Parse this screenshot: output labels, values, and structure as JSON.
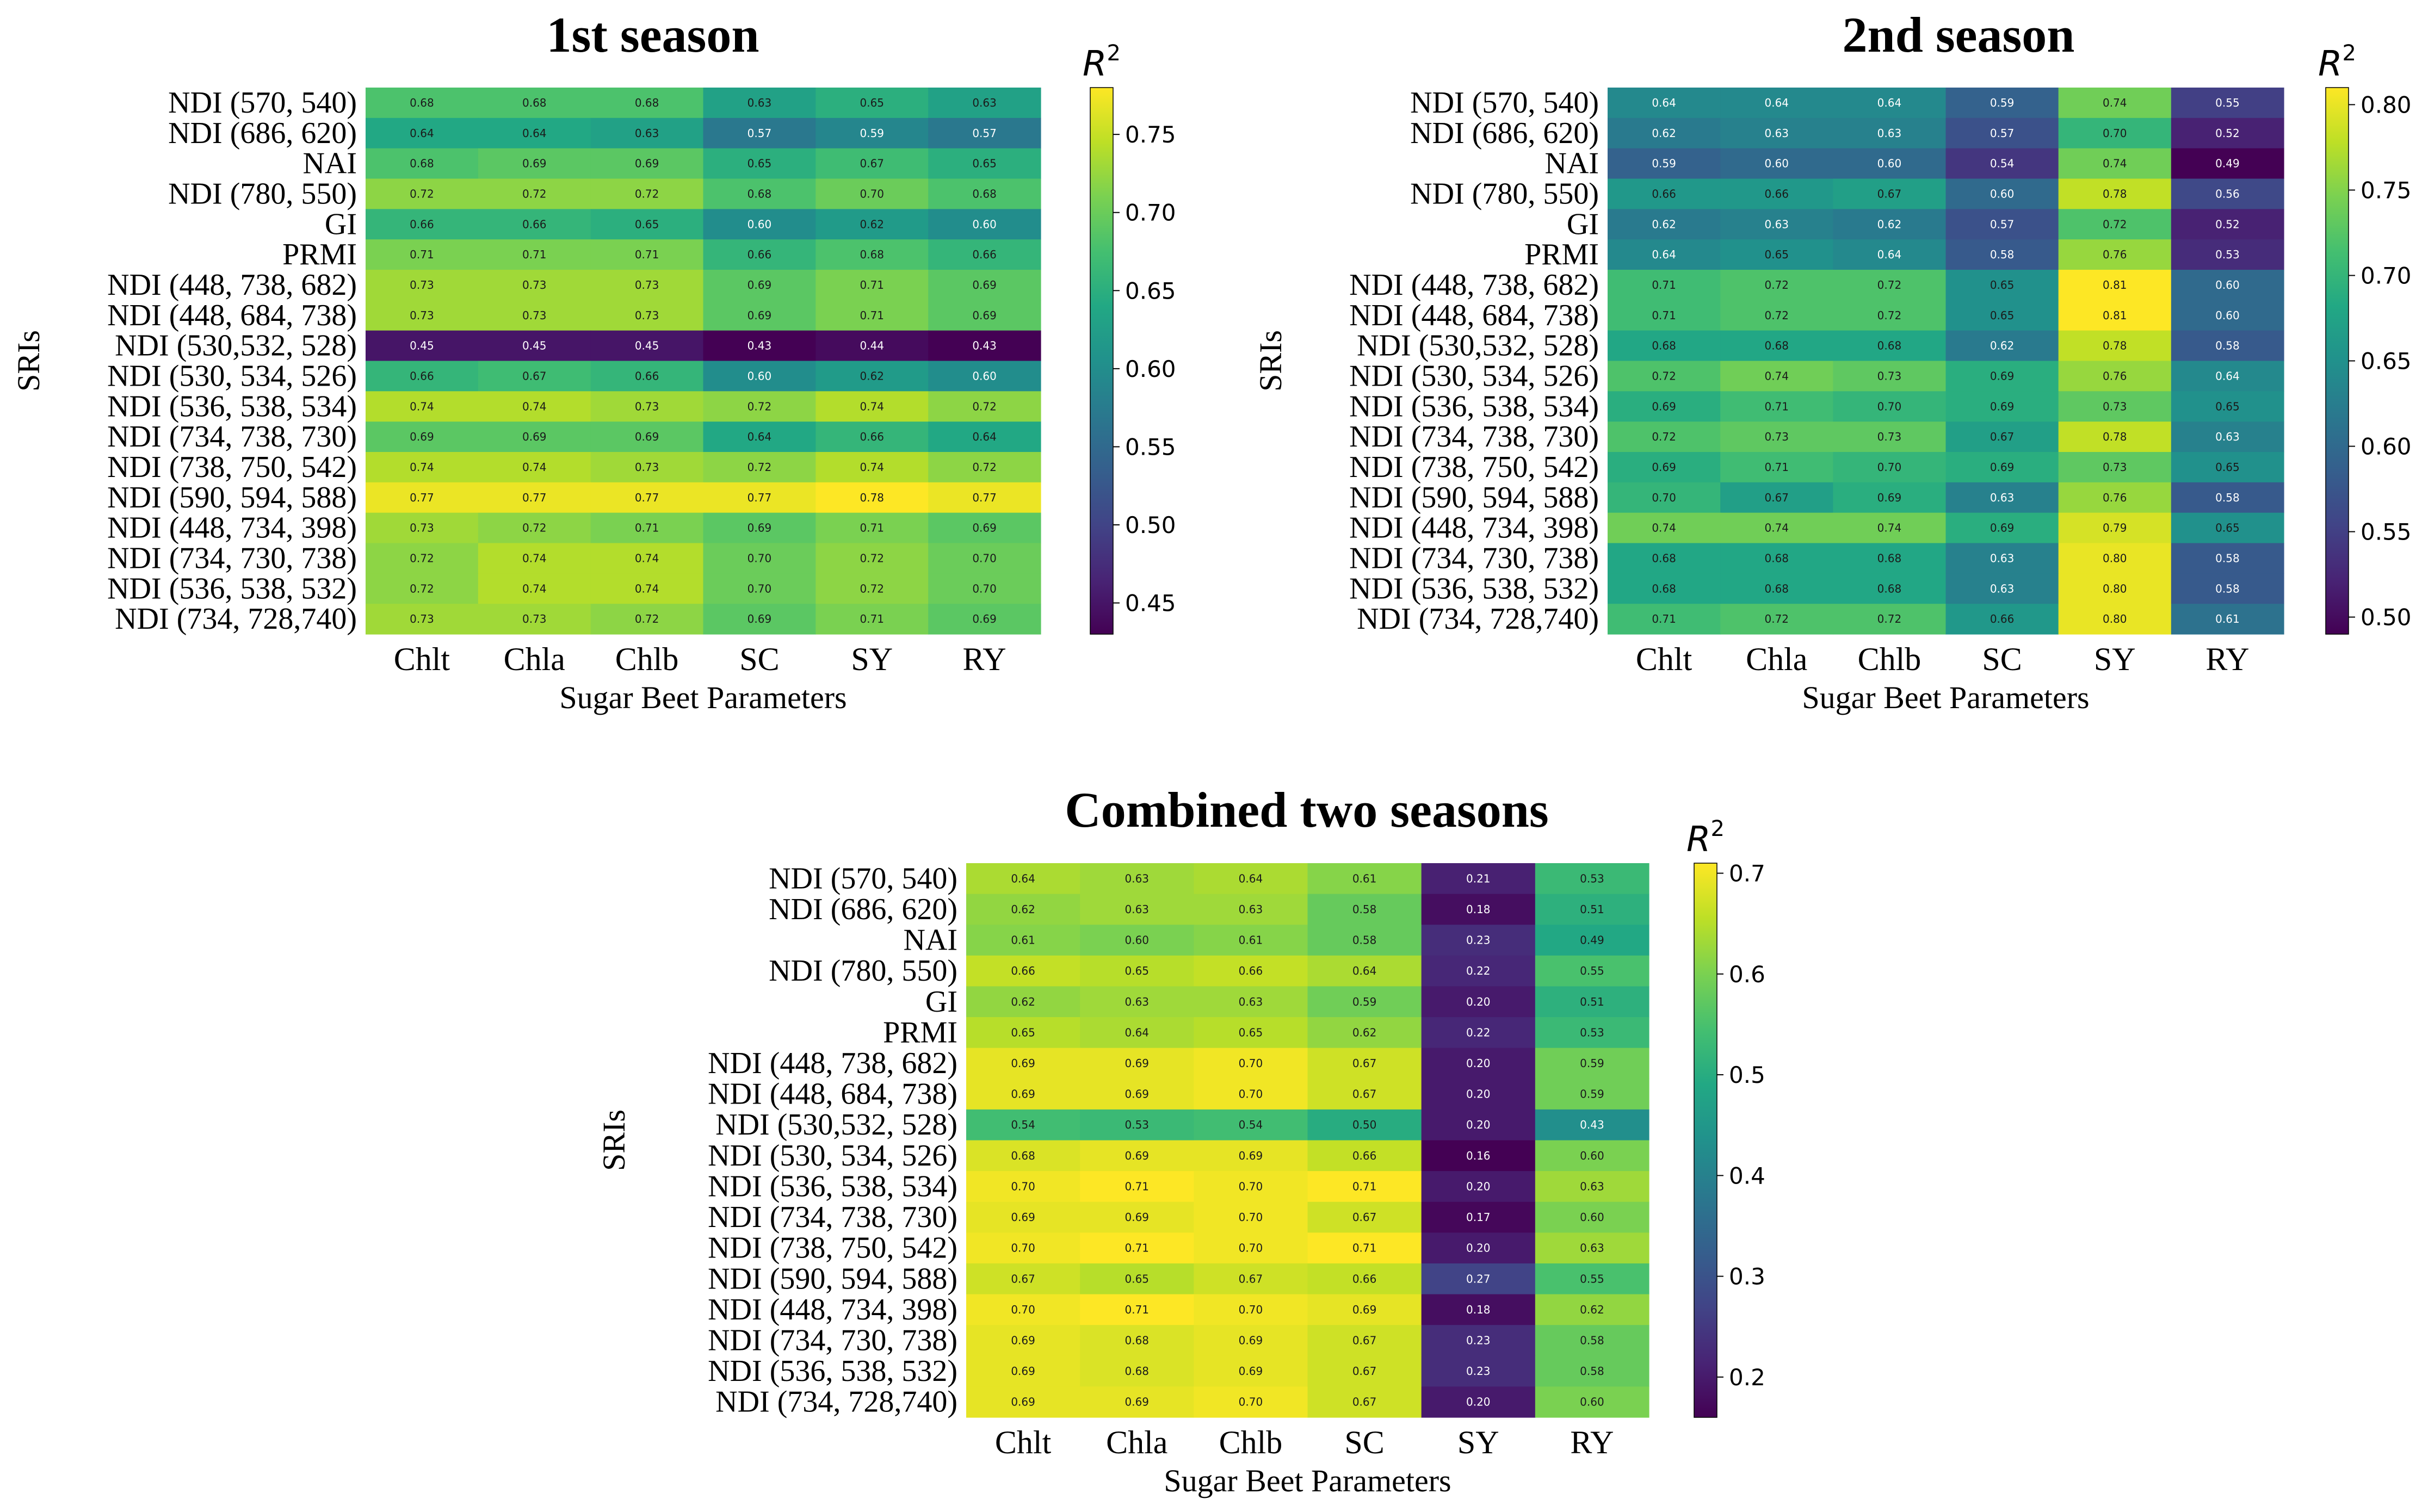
{
  "chart_data": [
    {
      "type": "heatmap",
      "title": "1st season",
      "xlabel": "Sugar Beet Parameters",
      "ylabel": "SRIs",
      "colorbar_label": "R",
      "colorbar_label_sup": "2",
      "colormap": "viridis",
      "vmin": 0.43,
      "vmax": 0.78,
      "colorbar_ticks": [
        0.45,
        0.5,
        0.55,
        0.6,
        0.65,
        0.7,
        0.75
      ],
      "colorbar_tick_labels": [
        "0.45",
        "0.50",
        "0.55",
        "0.60",
        "0.65",
        "0.70",
        "0.75"
      ],
      "columns": [
        "Chlt",
        "Chla",
        "Chlb",
        "SC",
        "SY",
        "RY"
      ],
      "rows": [
        "NDI (570, 540)",
        "NDI (686, 620)",
        "NAI",
        "NDI (780, 550)",
        "GI",
        "PRMI",
        "NDI (448, 738, 682)",
        "NDI (448, 684, 738)",
        "NDI (530,532, 528)",
        "NDI (530, 534, 526)",
        "NDI (536, 538, 534)",
        "NDI (734, 738, 730)",
        "NDI (738, 750, 542)",
        "NDI (590, 594, 588)",
        "NDI (448, 734, 398)",
        "NDI (734, 730, 738)",
        "NDI (536, 538, 532)",
        "NDI (734, 728,740)"
      ],
      "values": [
        [
          0.68,
          0.68,
          0.68,
          0.63,
          0.65,
          0.63
        ],
        [
          0.64,
          0.64,
          0.63,
          0.57,
          0.59,
          0.57
        ],
        [
          0.68,
          0.69,
          0.69,
          0.65,
          0.67,
          0.65
        ],
        [
          0.72,
          0.72,
          0.72,
          0.68,
          0.7,
          0.68
        ],
        [
          0.66,
          0.66,
          0.65,
          0.6,
          0.62,
          0.6
        ],
        [
          0.71,
          0.71,
          0.71,
          0.66,
          0.68,
          0.66
        ],
        [
          0.73,
          0.73,
          0.73,
          0.69,
          0.71,
          0.69
        ],
        [
          0.73,
          0.73,
          0.73,
          0.69,
          0.71,
          0.69
        ],
        [
          0.45,
          0.45,
          0.45,
          0.43,
          0.44,
          0.43
        ],
        [
          0.66,
          0.67,
          0.66,
          0.6,
          0.62,
          0.6
        ],
        [
          0.74,
          0.74,
          0.73,
          0.72,
          0.74,
          0.72
        ],
        [
          0.69,
          0.69,
          0.69,
          0.64,
          0.66,
          0.64
        ],
        [
          0.74,
          0.74,
          0.73,
          0.72,
          0.74,
          0.72
        ],
        [
          0.77,
          0.77,
          0.77,
          0.77,
          0.78,
          0.77
        ],
        [
          0.73,
          0.72,
          0.71,
          0.69,
          0.71,
          0.69
        ],
        [
          0.72,
          0.74,
          0.74,
          0.7,
          0.72,
          0.7
        ],
        [
          0.72,
          0.74,
          0.74,
          0.7,
          0.72,
          0.7
        ],
        [
          0.73,
          0.73,
          0.72,
          0.69,
          0.71,
          0.69
        ]
      ]
    },
    {
      "type": "heatmap",
      "title": "2nd season",
      "xlabel": "Sugar Beet Parameters",
      "ylabel": "SRIs",
      "colorbar_label": "R",
      "colorbar_label_sup": "2",
      "colormap": "viridis",
      "vmin": 0.49,
      "vmax": 0.81,
      "colorbar_ticks": [
        0.5,
        0.55,
        0.6,
        0.65,
        0.7,
        0.75,
        0.8
      ],
      "colorbar_tick_labels": [
        "0.50",
        "0.55",
        "0.60",
        "0.65",
        "0.70",
        "0.75",
        "0.80"
      ],
      "columns": [
        "Chlt",
        "Chla",
        "Chlb",
        "SC",
        "SY",
        "RY"
      ],
      "rows": [
        "NDI (570, 540)",
        "NDI (686, 620)",
        "NAI",
        "NDI (780, 550)",
        "GI",
        "PRMI",
        "NDI (448, 738, 682)",
        "NDI (448, 684, 738)",
        "NDI (530,532, 528)",
        "NDI (530, 534, 526)",
        "NDI (536, 538, 534)",
        "NDI (734, 738, 730)",
        "NDI (738, 750, 542)",
        "NDI (590, 594, 588)",
        "NDI (448, 734, 398)",
        "NDI (734, 730, 738)",
        "NDI (536, 538, 532)",
        "NDI (734, 728,740)"
      ],
      "values": [
        [
          0.64,
          0.64,
          0.64,
          0.59,
          0.74,
          0.55
        ],
        [
          0.62,
          0.63,
          0.63,
          0.57,
          0.7,
          0.52
        ],
        [
          0.59,
          0.6,
          0.6,
          0.54,
          0.74,
          0.49
        ],
        [
          0.66,
          0.66,
          0.67,
          0.6,
          0.78,
          0.56
        ],
        [
          0.62,
          0.63,
          0.62,
          0.57,
          0.72,
          0.52
        ],
        [
          0.64,
          0.65,
          0.64,
          0.58,
          0.76,
          0.53
        ],
        [
          0.71,
          0.72,
          0.72,
          0.65,
          0.81,
          0.6
        ],
        [
          0.71,
          0.72,
          0.72,
          0.65,
          0.81,
          0.6
        ],
        [
          0.68,
          0.68,
          0.68,
          0.62,
          0.78,
          0.58
        ],
        [
          0.72,
          0.74,
          0.73,
          0.69,
          0.76,
          0.64
        ],
        [
          0.69,
          0.71,
          0.7,
          0.69,
          0.73,
          0.65
        ],
        [
          0.72,
          0.73,
          0.73,
          0.67,
          0.78,
          0.63
        ],
        [
          0.69,
          0.71,
          0.7,
          0.69,
          0.73,
          0.65
        ],
        [
          0.7,
          0.67,
          0.69,
          0.63,
          0.76,
          0.58
        ],
        [
          0.74,
          0.74,
          0.74,
          0.69,
          0.79,
          0.65
        ],
        [
          0.68,
          0.68,
          0.68,
          0.63,
          0.8,
          0.58
        ],
        [
          0.68,
          0.68,
          0.68,
          0.63,
          0.8,
          0.58
        ],
        [
          0.71,
          0.72,
          0.72,
          0.66,
          0.8,
          0.61
        ]
      ]
    },
    {
      "type": "heatmap",
      "title": "Combined two seasons",
      "xlabel": "Sugar Beet Parameters",
      "ylabel": "SRIs",
      "colorbar_label": "R",
      "colorbar_label_sup": "2",
      "colormap": "viridis",
      "vmin": 0.16,
      "vmax": 0.71,
      "colorbar_ticks": [
        0.2,
        0.3,
        0.4,
        0.5,
        0.6,
        0.7
      ],
      "colorbar_tick_labels": [
        "0.2",
        "0.3",
        "0.4",
        "0.5",
        "0.6",
        "0.7"
      ],
      "columns": [
        "Chlt",
        "Chla",
        "Chlb",
        "SC",
        "SY",
        "RY"
      ],
      "rows": [
        "NDI (570, 540)",
        "NDI (686, 620)",
        "NAI",
        "NDI (780, 550)",
        "GI",
        "PRMI",
        "NDI (448, 738, 682)",
        "NDI (448, 684, 738)",
        "NDI (530,532, 528)",
        "NDI (530, 534, 526)",
        "NDI (536, 538, 534)",
        "NDI (734, 738, 730)",
        "NDI (738, 750, 542)",
        "NDI (590, 594, 588)",
        "NDI (448, 734, 398)",
        "NDI (734, 730, 738)",
        "NDI (536, 538, 532)",
        "NDI (734, 728,740)"
      ],
      "values": [
        [
          0.64,
          0.63,
          0.64,
          0.61,
          0.21,
          0.53
        ],
        [
          0.62,
          0.63,
          0.63,
          0.58,
          0.18,
          0.51
        ],
        [
          0.61,
          0.6,
          0.61,
          0.58,
          0.23,
          0.49
        ],
        [
          0.66,
          0.65,
          0.66,
          0.64,
          0.22,
          0.55
        ],
        [
          0.62,
          0.63,
          0.63,
          0.59,
          0.2,
          0.51
        ],
        [
          0.65,
          0.64,
          0.65,
          0.62,
          0.22,
          0.53
        ],
        [
          0.69,
          0.69,
          0.7,
          0.67,
          0.2,
          0.59
        ],
        [
          0.69,
          0.69,
          0.7,
          0.67,
          0.2,
          0.59
        ],
        [
          0.54,
          0.53,
          0.54,
          0.5,
          0.2,
          0.43
        ],
        [
          0.68,
          0.69,
          0.69,
          0.66,
          0.16,
          0.6
        ],
        [
          0.7,
          0.71,
          0.7,
          0.71,
          0.2,
          0.63
        ],
        [
          0.69,
          0.69,
          0.7,
          0.67,
          0.17,
          0.6
        ],
        [
          0.7,
          0.71,
          0.7,
          0.71,
          0.2,
          0.63
        ],
        [
          0.67,
          0.65,
          0.67,
          0.66,
          0.27,
          0.55
        ],
        [
          0.7,
          0.71,
          0.7,
          0.69,
          0.18,
          0.62
        ],
        [
          0.69,
          0.68,
          0.69,
          0.67,
          0.23,
          0.58
        ],
        [
          0.69,
          0.68,
          0.69,
          0.67,
          0.23,
          0.58
        ],
        [
          0.69,
          0.69,
          0.7,
          0.67,
          0.2,
          0.6
        ]
      ]
    }
  ]
}
